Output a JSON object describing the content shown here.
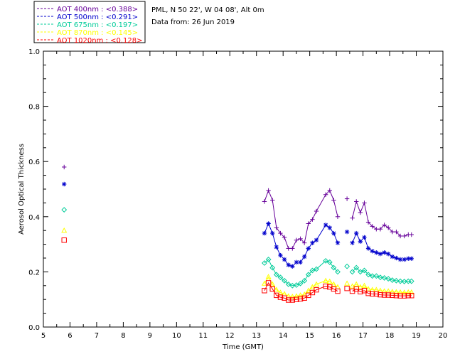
{
  "header": {
    "site": "PML, N 50 22', W 04 08', Alt 0m",
    "date_line": "Data from: 26 Jun 2019"
  },
  "chart_data": {
    "type": "scatter",
    "xlabel": "Time (GMT)",
    "ylabel": "Aerosol Optical Thickness",
    "xlim": [
      5,
      20
    ],
    "ylim": [
      0.0,
      1.0
    ],
    "x_ticks": [
      "5",
      "6",
      "7",
      "8",
      "9",
      "10",
      "11",
      "12",
      "13",
      "14",
      "15",
      "16",
      "17",
      "18",
      "19",
      "20"
    ],
    "y_ticks": [
      "0.0",
      "0.2",
      "0.4",
      "0.6",
      "0.8",
      "1.0"
    ],
    "legend_position": "top-left",
    "series": [
      {
        "name": "AOT  400nm : <0.388>",
        "color": "#660099",
        "marker": "plus",
        "x": [
          5.78,
          13.3,
          13.45,
          13.6,
          13.75,
          13.9,
          14.05,
          14.2,
          14.35,
          14.5,
          14.65,
          14.8,
          14.95,
          15.1,
          15.25,
          15.6,
          15.75,
          15.9,
          16.05,
          16.4,
          16.6,
          16.75,
          16.9,
          17.05,
          17.2,
          17.35,
          17.5,
          17.65,
          17.8,
          17.95,
          18.1,
          18.25,
          18.4,
          18.55,
          18.7,
          18.82
        ],
        "y": [
          0.58,
          0.455,
          0.495,
          0.46,
          0.36,
          0.34,
          0.325,
          0.285,
          0.285,
          0.315,
          0.32,
          0.305,
          0.375,
          0.39,
          0.42,
          0.48,
          0.495,
          0.46,
          0.4,
          0.465,
          0.395,
          0.455,
          0.415,
          0.45,
          0.38,
          0.365,
          0.355,
          0.355,
          0.37,
          0.36,
          0.345,
          0.345,
          0.33,
          0.33,
          0.335,
          0.335
        ],
        "breaks_after": [
          0,
          18,
          19
        ]
      },
      {
        "name": "AOT  500nm : <0.291>",
        "color": "#0000cc",
        "marker": "star",
        "x": [
          5.78,
          13.3,
          13.45,
          13.6,
          13.75,
          13.9,
          14.05,
          14.2,
          14.35,
          14.5,
          14.65,
          14.8,
          14.95,
          15.1,
          15.25,
          15.6,
          15.75,
          15.9,
          16.05,
          16.4,
          16.6,
          16.75,
          16.9,
          17.05,
          17.2,
          17.35,
          17.5,
          17.65,
          17.8,
          17.95,
          18.1,
          18.25,
          18.4,
          18.55,
          18.7,
          18.82
        ],
        "y": [
          0.518,
          0.34,
          0.375,
          0.34,
          0.29,
          0.26,
          0.245,
          0.225,
          0.22,
          0.235,
          0.235,
          0.255,
          0.285,
          0.305,
          0.315,
          0.37,
          0.36,
          0.34,
          0.305,
          0.345,
          0.305,
          0.34,
          0.31,
          0.325,
          0.285,
          0.275,
          0.27,
          0.265,
          0.27,
          0.265,
          0.255,
          0.25,
          0.245,
          0.245,
          0.248,
          0.248
        ],
        "breaks_after": [
          0,
          18,
          19
        ]
      },
      {
        "name": "AOT  675nm : <0.197>",
        "color": "#00cc99",
        "marker": "diamond",
        "x": [
          5.78,
          13.3,
          13.45,
          13.6,
          13.75,
          13.9,
          14.05,
          14.2,
          14.35,
          14.5,
          14.65,
          14.8,
          14.95,
          15.1,
          15.25,
          15.6,
          15.75,
          15.9,
          16.05,
          16.4,
          16.6,
          16.75,
          16.9,
          17.05,
          17.2,
          17.35,
          17.5,
          17.65,
          17.8,
          17.95,
          18.1,
          18.25,
          18.4,
          18.55,
          18.7,
          18.82
        ],
        "y": [
          0.425,
          0.232,
          0.245,
          0.215,
          0.19,
          0.18,
          0.168,
          0.155,
          0.15,
          0.152,
          0.158,
          0.168,
          0.19,
          0.205,
          0.21,
          0.24,
          0.235,
          0.215,
          0.2,
          0.22,
          0.2,
          0.215,
          0.2,
          0.205,
          0.19,
          0.185,
          0.185,
          0.18,
          0.178,
          0.175,
          0.17,
          0.168,
          0.166,
          0.165,
          0.166,
          0.166
        ],
        "breaks_after": [
          0,
          18,
          19
        ]
      },
      {
        "name": "AOT  870nm : <0.145>",
        "color": "#ffff00",
        "marker": "triangle",
        "x": [
          5.78,
          13.3,
          13.45,
          13.6,
          13.75,
          13.9,
          14.05,
          14.2,
          14.35,
          14.5,
          14.65,
          14.8,
          14.95,
          15.1,
          15.25,
          15.6,
          15.75,
          15.9,
          16.05,
          16.4,
          16.6,
          16.75,
          16.9,
          17.05,
          17.2,
          17.35,
          17.5,
          17.65,
          17.8,
          17.95,
          18.1,
          18.25,
          18.4,
          18.55,
          18.7,
          18.82
        ],
        "y": [
          0.35,
          0.158,
          0.182,
          0.155,
          0.135,
          0.125,
          0.12,
          0.112,
          0.11,
          0.112,
          0.115,
          0.118,
          0.132,
          0.145,
          0.155,
          0.168,
          0.165,
          0.155,
          0.145,
          0.158,
          0.148,
          0.155,
          0.145,
          0.15,
          0.138,
          0.135,
          0.135,
          0.132,
          0.13,
          0.13,
          0.128,
          0.127,
          0.126,
          0.125,
          0.126,
          0.126
        ],
        "breaks_after": [
          0,
          18,
          19
        ]
      },
      {
        "name": "AOT 1020nm : <0.128>",
        "color": "#ff0000",
        "marker": "square",
        "x": [
          5.78,
          13.3,
          13.45,
          13.6,
          13.75,
          13.9,
          14.05,
          14.2,
          14.35,
          14.5,
          14.65,
          14.8,
          14.95,
          15.1,
          15.25,
          15.6,
          15.75,
          15.9,
          16.05,
          16.4,
          16.6,
          16.75,
          16.9,
          17.05,
          17.2,
          17.35,
          17.5,
          17.65,
          17.8,
          17.95,
          18.1,
          18.25,
          18.4,
          18.55,
          18.7,
          18.82
        ],
        "y": [
          0.315,
          0.132,
          0.16,
          0.138,
          0.115,
          0.108,
          0.105,
          0.098,
          0.098,
          0.1,
          0.102,
          0.105,
          0.115,
          0.125,
          0.135,
          0.148,
          0.145,
          0.138,
          0.13,
          0.14,
          0.13,
          0.138,
          0.128,
          0.132,
          0.122,
          0.12,
          0.12,
          0.117,
          0.116,
          0.116,
          0.115,
          0.114,
          0.113,
          0.113,
          0.114,
          0.114
        ],
        "breaks_after": [
          0,
          18,
          19
        ]
      }
    ]
  }
}
